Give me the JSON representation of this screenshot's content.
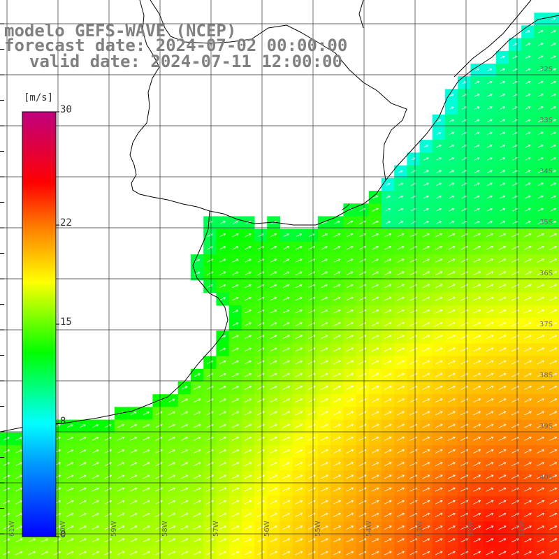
{
  "title": {
    "line1": "modelo GEFS-WAVE (NCEP)",
    "line2": "forecast date: 2024-07-02 00:00:00",
    "line3": "valid date: 2024-07-11 12:00:00"
  },
  "colorbar": {
    "unit": "[m/s]",
    "min": 0,
    "max": 30,
    "ticks": [
      {
        "label": "30",
        "value": 30
      },
      {
        "label": "22",
        "value": 22
      },
      {
        "label": "15",
        "value": 15
      },
      {
        "label": "8",
        "value": 8
      },
      {
        "label": "0",
        "value": 0
      }
    ],
    "colors": [
      "#0000ff",
      "#00a0ff",
      "#00ffff",
      "#00ff00",
      "#ffff00",
      "#ff8000",
      "#ff0000",
      "#c0007f"
    ]
  },
  "grid": {
    "lat_labels": [
      "32S",
      "33S",
      "34S",
      "35S",
      "36S",
      "37S",
      "38S",
      "39S",
      "40S"
    ],
    "lon_labels": [
      "61W",
      "60W",
      "59W",
      "58W",
      "57W",
      "56W",
      "55W",
      "54W",
      "53W",
      "52W",
      "51W"
    ]
  },
  "colors": {
    "land": "#ffffff",
    "coast": "#000000",
    "gridline": "#333333",
    "arrow": "#ffffff"
  }
}
